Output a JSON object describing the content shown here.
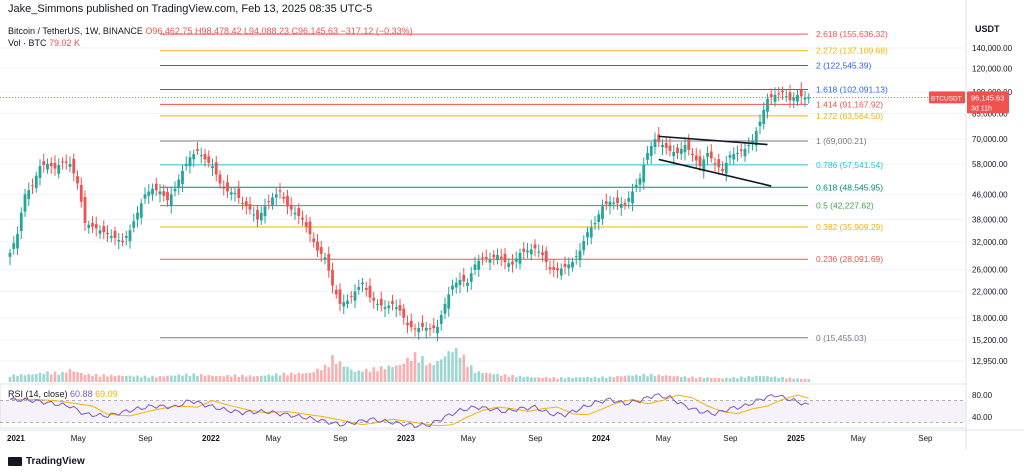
{
  "header": {
    "publisher": "Jake_Simmons published on TradingView.com, Feb 13, 2025 08:35 UTC-5",
    "symbol": "Bitcoin / TetherUS, 1W, BINANCE",
    "ohlc": "O96,462.75 H98,478.42 L94,088.23 C96,145.63 −317.12 (−0.33%)",
    "vol_label": "Vol · BTC",
    "vol_value": "79.02 K",
    "currency": "USDT"
  },
  "rsi_legend": {
    "label": "RSI (14, close)",
    "rsi": "60.88",
    "ma": "69.09"
  },
  "price_tag": {
    "symbol": "BTCUSDT",
    "price": "96,145.63",
    "countdown": "3d 11h",
    "color": "#ef5350"
  },
  "footer": {
    "brand": "TradingView"
  },
  "chart_data": {
    "type": "candlestick",
    "scale": "log",
    "y_ticks": [
      "140,000.00",
      "120,000.00",
      "100,000.00",
      "85,000.00",
      "70,000.00",
      "58,000.00",
      "46,000.00",
      "38,000.00",
      "32,000.00",
      "26,000.00",
      "22,000.00",
      "18,000.00",
      "15,200.00",
      "12,950.00"
    ],
    "rsi_ticks": [
      "80.00",
      "40.00"
    ],
    "x_labels": [
      {
        "label": "2021",
        "bold": true
      },
      {
        "label": "May",
        "bold": false
      },
      {
        "label": "Sep",
        "bold": false
      },
      {
        "label": "2022",
        "bold": true
      },
      {
        "label": "May",
        "bold": false
      },
      {
        "label": "Sep",
        "bold": false
      },
      {
        "label": "2023",
        "bold": true
      },
      {
        "label": "May",
        "bold": false
      },
      {
        "label": "Sep",
        "bold": false
      },
      {
        "label": "2024",
        "bold": true
      },
      {
        "label": "May",
        "bold": false
      },
      {
        "label": "Sep",
        "bold": false
      },
      {
        "label": "2025",
        "bold": true
      },
      {
        "label": "May",
        "bold": false
      },
      {
        "label": "Sep",
        "bold": false
      }
    ],
    "fib_levels": [
      {
        "label": "2.618 (155,636.32)",
        "value": 155636.32,
        "color": "#ef5350"
      },
      {
        "label": "2.272 (137,109.68)",
        "value": 137109.68,
        "color": "#f4b400"
      },
      {
        "label": "2 (122,545.39)",
        "value": 122545.39,
        "color": "#2962ff"
      },
      {
        "label": "1.618 (102,091.13)",
        "value": 102091.13,
        "color": "#2962ff"
      },
      {
        "label": "1.414 (91,167.92)",
        "value": 91167.92,
        "color": "#ef5350"
      },
      {
        "label": "1.272 (83,564.50)",
        "value": 83564.5,
        "color": "#f4b400"
      },
      {
        "label": "1 (69,000.21)",
        "value": 69000.21,
        "color": "#787b86"
      },
      {
        "label": "0.786 (57,541.54)",
        "value": 57541.54,
        "color": "#26c6da"
      },
      {
        "label": "0.618 (48,545.95)",
        "value": 48545.95,
        "color": "#00897b"
      },
      {
        "label": "0.5 (42,227.62)",
        "value": 42227.62,
        "color": "#43a047"
      },
      {
        "label": "0.382 (35,909.29)",
        "value": 35909.29,
        "color": "#f4b400"
      },
      {
        "label": "0.236 (28,091.69)",
        "value": 28091.69,
        "color": "#ef5350"
      },
      {
        "label": "0 (15,455.03)",
        "value": 15455.03,
        "color": "#787b86"
      }
    ],
    "close_path": [
      [
        0,
        29500
      ],
      [
        2,
        34000
      ],
      [
        4,
        46000
      ],
      [
        6,
        49000
      ],
      [
        8,
        57000
      ],
      [
        10,
        58000
      ],
      [
        12,
        56000
      ],
      [
        14,
        59000
      ],
      [
        16,
        58000
      ],
      [
        18,
        50000
      ],
      [
        20,
        37000
      ],
      [
        22,
        36000
      ],
      [
        24,
        35000
      ],
      [
        26,
        34000
      ],
      [
        28,
        33000
      ],
      [
        30,
        32000
      ],
      [
        32,
        35000
      ],
      [
        34,
        40000
      ],
      [
        36,
        46000
      ],
      [
        38,
        48000
      ],
      [
        40,
        47000
      ],
      [
        42,
        44000
      ],
      [
        44,
        48000
      ],
      [
        46,
        55000
      ],
      [
        48,
        61000
      ],
      [
        50,
        64000
      ],
      [
        52,
        60000
      ],
      [
        54,
        57000
      ],
      [
        56,
        50000
      ],
      [
        58,
        47000
      ],
      [
        60,
        46500
      ],
      [
        62,
        43000
      ],
      [
        64,
        41000
      ],
      [
        66,
        38000
      ],
      [
        68,
        42000
      ],
      [
        70,
        45000
      ],
      [
        72,
        47000
      ],
      [
        74,
        42000
      ],
      [
        76,
        40000
      ],
      [
        78,
        38000
      ],
      [
        80,
        34000
      ],
      [
        82,
        30000
      ],
      [
        84,
        28500
      ],
      [
        86,
        23000
      ],
      [
        88,
        20000
      ],
      [
        90,
        20500
      ],
      [
        92,
        22000
      ],
      [
        94,
        23500
      ],
      [
        96,
        21000
      ],
      [
        98,
        20000
      ],
      [
        100,
        19500
      ],
      [
        102,
        20000
      ],
      [
        104,
        19000
      ],
      [
        106,
        17000
      ],
      [
        108,
        16500
      ],
      [
        110,
        16800
      ],
      [
        112,
        16500
      ],
      [
        114,
        16800
      ],
      [
        116,
        20000
      ],
      [
        118,
        23000
      ],
      [
        120,
        24000
      ],
      [
        122,
        23500
      ],
      [
        124,
        27000
      ],
      [
        126,
        28500
      ],
      [
        128,
        28000
      ],
      [
        130,
        29000
      ],
      [
        132,
        27500
      ],
      [
        134,
        27000
      ],
      [
        136,
        29500
      ],
      [
        138,
        30000
      ],
      [
        140,
        30500
      ],
      [
        142,
        29000
      ],
      [
        144,
        26000
      ],
      [
        146,
        25800
      ],
      [
        148,
        26500
      ],
      [
        150,
        27500
      ],
      [
        152,
        30000
      ],
      [
        154,
        34500
      ],
      [
        156,
        37000
      ],
      [
        158,
        42000
      ],
      [
        160,
        43500
      ],
      [
        162,
        43000
      ],
      [
        164,
        42500
      ],
      [
        166,
        47000
      ],
      [
        168,
        52000
      ],
      [
        170,
        63000
      ],
      [
        172,
        70000
      ],
      [
        174,
        67000
      ],
      [
        176,
        64000
      ],
      [
        178,
        63000
      ],
      [
        180,
        67000
      ],
      [
        182,
        62000
      ],
      [
        184,
        57000
      ],
      [
        186,
        63000
      ],
      [
        188,
        58000
      ],
      [
        190,
        55000
      ],
      [
        192,
        62000
      ],
      [
        194,
        63000
      ],
      [
        196,
        65000
      ],
      [
        198,
        69000
      ],
      [
        200,
        80000
      ],
      [
        202,
        95000
      ],
      [
        204,
        98000
      ],
      [
        206,
        100000
      ],
      [
        208,
        94000
      ],
      [
        210,
        98000
      ],
      [
        212,
        96000
      ],
      [
        213,
        96145
      ]
    ],
    "volume_path": [
      [
        0,
        2
      ],
      [
        6,
        2.2
      ],
      [
        10,
        2.8
      ],
      [
        14,
        2.6
      ],
      [
        16,
        3.5
      ],
      [
        20,
        2.2
      ],
      [
        30,
        1.8
      ],
      [
        40,
        1.6
      ],
      [
        48,
        2.3
      ],
      [
        56,
        1.7
      ],
      [
        60,
        2
      ],
      [
        66,
        1.7
      ],
      [
        72,
        2.4
      ],
      [
        80,
        2.6
      ],
      [
        84,
        4.5
      ],
      [
        86,
        7
      ],
      [
        88,
        5.5
      ],
      [
        92,
        3
      ],
      [
        98,
        4
      ],
      [
        104,
        4.8
      ],
      [
        106,
        6.5
      ],
      [
        108,
        7.8
      ],
      [
        110,
        6.8
      ],
      [
        112,
        5
      ],
      [
        114,
        5.8
      ],
      [
        116,
        7.5
      ],
      [
        118,
        9.5
      ],
      [
        120,
        8.5
      ],
      [
        124,
        3
      ],
      [
        130,
        2.2
      ],
      [
        140,
        1.3
      ],
      [
        150,
        1.3
      ],
      [
        160,
        1.5
      ],
      [
        170,
        2.2
      ],
      [
        180,
        1.5
      ],
      [
        190,
        1.1
      ],
      [
        200,
        1.8
      ],
      [
        213,
        0.8
      ]
    ],
    "rsi_path": [
      [
        0,
        72
      ],
      [
        6,
        70
      ],
      [
        12,
        64
      ],
      [
        16,
        60
      ],
      [
        20,
        45
      ],
      [
        26,
        42
      ],
      [
        32,
        52
      ],
      [
        38,
        60
      ],
      [
        44,
        58
      ],
      [
        48,
        70
      ],
      [
        52,
        62
      ],
      [
        58,
        52
      ],
      [
        62,
        48
      ],
      [
        68,
        50
      ],
      [
        72,
        46
      ],
      [
        78,
        40
      ],
      [
        84,
        32
      ],
      [
        88,
        26
      ],
      [
        92,
        30
      ],
      [
        96,
        36
      ],
      [
        100,
        32
      ],
      [
        104,
        28
      ],
      [
        108,
        24
      ],
      [
        112,
        26
      ],
      [
        116,
        40
      ],
      [
        120,
        52
      ],
      [
        124,
        58
      ],
      [
        128,
        55
      ],
      [
        132,
        50
      ],
      [
        136,
        55
      ],
      [
        140,
        58
      ],
      [
        144,
        46
      ],
      [
        148,
        44
      ],
      [
        152,
        55
      ],
      [
        156,
        66
      ],
      [
        160,
        72
      ],
      [
        164,
        64
      ],
      [
        168,
        70
      ],
      [
        172,
        80
      ],
      [
        176,
        75
      ],
      [
        180,
        60
      ],
      [
        184,
        50
      ],
      [
        188,
        46
      ],
      [
        192,
        55
      ],
      [
        196,
        60
      ],
      [
        200,
        72
      ],
      [
        204,
        80
      ],
      [
        208,
        72
      ],
      [
        213,
        61
      ]
    ],
    "pattern": {
      "upper": [
        [
          173,
          71500
        ],
        [
          202,
          67200
        ]
      ],
      "lower": [
        [
          173,
          60000
        ],
        [
          203,
          49000
        ]
      ]
    }
  }
}
